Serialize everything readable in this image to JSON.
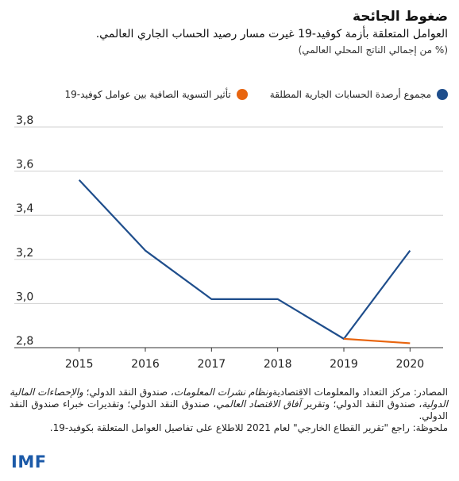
{
  "header": {
    "title": "ضغوط الجائحة",
    "subtitle": "العوامل المتعلقة بأزمة كوفيد-19 غيرت مسار رصيد الحساب الجاري العالمي.",
    "units": "(% من إجمالي الناتج المحلي العالمي)"
  },
  "colors": {
    "series1": "#1f4e8c",
    "series2": "#e8650f",
    "grid": "#d0d0d0",
    "logo": "#1c5aa8"
  },
  "chart_data": {
    "type": "line",
    "x": [
      2015,
      2016,
      2017,
      2018,
      2019,
      2020
    ],
    "ylim": [
      2.8,
      3.8
    ],
    "yticks": [
      "2,8",
      "3,0",
      "3,2",
      "3,4",
      "3,6",
      "3,8"
    ],
    "yticks_values": [
      2.8,
      3.0,
      3.2,
      3.4,
      3.6,
      3.8
    ],
    "grid": "horizontal",
    "legend_position": "top",
    "series": [
      {
        "name": "مجموع أرصدة الحسابات الجارية المطلقة",
        "x": [
          2015,
          2016,
          2017,
          2018,
          2019,
          2020
        ],
        "values": [
          3.56,
          3.24,
          3.02,
          3.02,
          2.84,
          3.24
        ]
      },
      {
        "name": "تأثير التسوية الصافية بين عوامل كوفيد-19",
        "x": [
          2019,
          2020
        ],
        "values": [
          2.84,
          2.82
        ]
      }
    ]
  },
  "notes": {
    "sources_prefix": "المصادر: مركز التعداد والمعلومات الاقتصادية",
    "sources_it1": "ونظام نشرات المعلومات",
    "sources_mid1": "، صندوق النقد الدولي؛",
    "sources_it2": "والإحصاءات المالية الدولية",
    "sources_mid2": "، صندوق النقد الدولي؛ وتقرير",
    "sources_it3": "آفاق الاقتصاد العالمي",
    "sources_end": "، صندوق النقد الدولي؛ وتقديرات خبراء صندوق النقد الدولي.",
    "note": "ملحوظة: راجع \"تقرير القطاع الخارجي\" لعام 2021 للاطلاع على تفاصيل العوامل المتعلقة بكوفيد-19."
  },
  "logo": "IMF"
}
